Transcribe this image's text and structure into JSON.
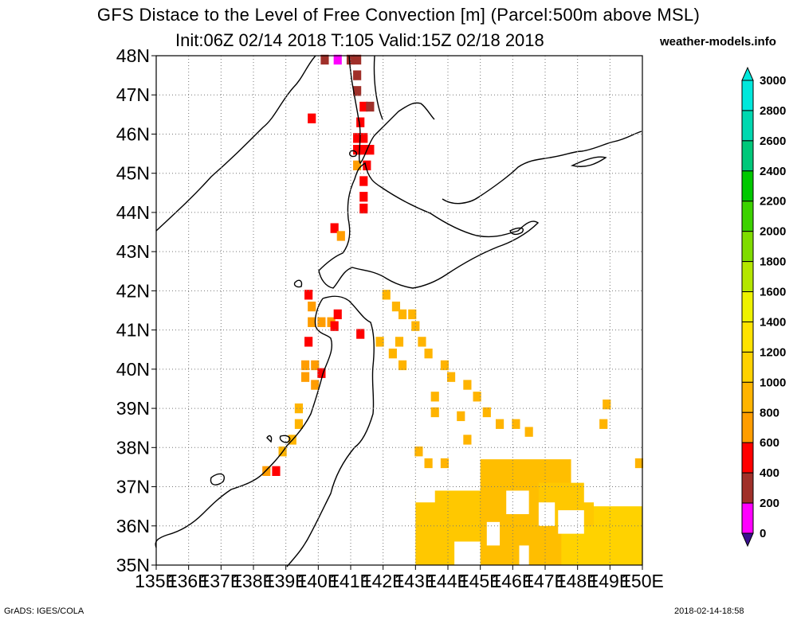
{
  "title": {
    "line1": "GFS Distace to the Level of Free Convection [m] (Parcel:500m above MSL)",
    "line2": "Init:06Z 02/14 2018 T:105 Valid:15Z 02/18 2018",
    "brand": "weather-models.info"
  },
  "footer": {
    "left": "GrADS: IGES/COLA",
    "right": "2018-02-14-18:58"
  },
  "map": {
    "lat_labels": [
      "35N",
      "36N",
      "37N",
      "38N",
      "39N",
      "40N",
      "41N",
      "42N",
      "43N",
      "44N",
      "45N",
      "46N",
      "47N",
      "48N"
    ],
    "lon_labels": [
      "135E",
      "136E",
      "137E",
      "138E",
      "139E",
      "140E",
      "141E",
      "142E",
      "143E",
      "144E",
      "145E",
      "146E",
      "147E",
      "148E",
      "149E",
      "150E"
    ],
    "extent": {
      "lon": [
        135,
        150
      ],
      "lat": [
        35,
        48
      ]
    }
  },
  "colorbar": {
    "labels": [
      "0",
      "200",
      "400",
      "600",
      "800",
      "1000",
      "1200",
      "1400",
      "1600",
      "1800",
      "2000",
      "2200",
      "2400",
      "2600",
      "2800",
      "3000"
    ],
    "colors": [
      "#3a0f8f",
      "#ff00ff",
      "#a0302a",
      "#ff0000",
      "#ff9d00",
      "#ffb400",
      "#ffd200",
      "#ffe300",
      "#eef200",
      "#b4e600",
      "#7fdc00",
      "#3cd200",
      "#00c800",
      "#00c87a",
      "#00d8b0",
      "#00e8dc"
    ],
    "low_color": "#3a0f8f",
    "high_color": "#00e8dc"
  },
  "field_cells": [
    {
      "lon": 141.0,
      "lat": 47.9,
      "c": "#a0302a"
    },
    {
      "lon": 141.2,
      "lat": 47.9,
      "c": "#a0302a"
    },
    {
      "lon": 140.2,
      "lat": 47.9,
      "c": "#a0302a"
    },
    {
      "lon": 140.6,
      "lat": 47.9,
      "c": "#ff00ff"
    },
    {
      "lon": 141.2,
      "lat": 47.5,
      "c": "#a0302a"
    },
    {
      "lon": 141.2,
      "lat": 47.1,
      "c": "#a0302a"
    },
    {
      "lon": 141.4,
      "lat": 46.7,
      "c": "#ff0000"
    },
    {
      "lon": 141.6,
      "lat": 46.7,
      "c": "#a0302a"
    },
    {
      "lon": 139.8,
      "lat": 46.4,
      "c": "#ff0000"
    },
    {
      "lon": 141.3,
      "lat": 46.3,
      "c": "#ff0000"
    },
    {
      "lon": 141.2,
      "lat": 45.9,
      "c": "#ff0000"
    },
    {
      "lon": 141.4,
      "lat": 45.9,
      "c": "#ff0000"
    },
    {
      "lon": 141.2,
      "lat": 45.6,
      "c": "#ff0000"
    },
    {
      "lon": 141.4,
      "lat": 45.6,
      "c": "#ff0000"
    },
    {
      "lon": 141.6,
      "lat": 45.6,
      "c": "#ff0000"
    },
    {
      "lon": 141.2,
      "lat": 45.2,
      "c": "#ff9d00"
    },
    {
      "lon": 141.5,
      "lat": 45.2,
      "c": "#ff0000"
    },
    {
      "lon": 141.4,
      "lat": 44.8,
      "c": "#ff0000"
    },
    {
      "lon": 141.4,
      "lat": 44.4,
      "c": "#ff0000"
    },
    {
      "lon": 141.4,
      "lat": 44.1,
      "c": "#ff0000"
    },
    {
      "lon": 140.5,
      "lat": 43.6,
      "c": "#ff0000"
    },
    {
      "lon": 140.7,
      "lat": 43.4,
      "c": "#ff9d00"
    },
    {
      "lon": 139.7,
      "lat": 41.9,
      "c": "#ff0000"
    },
    {
      "lon": 139.8,
      "lat": 41.6,
      "c": "#ff9d00"
    },
    {
      "lon": 139.8,
      "lat": 41.2,
      "c": "#ff9d00"
    },
    {
      "lon": 140.1,
      "lat": 41.2,
      "c": "#ff9d00"
    },
    {
      "lon": 140.4,
      "lat": 41.2,
      "c": "#ff9d00"
    },
    {
      "lon": 140.6,
      "lat": 41.4,
      "c": "#ff0000"
    },
    {
      "lon": 140.5,
      "lat": 41.1,
      "c": "#ff0000"
    },
    {
      "lon": 141.3,
      "lat": 40.9,
      "c": "#ff0000"
    },
    {
      "lon": 142.1,
      "lat": 41.9,
      "c": "#ffb400"
    },
    {
      "lon": 142.4,
      "lat": 41.6,
      "c": "#ffb400"
    },
    {
      "lon": 142.6,
      "lat": 41.4,
      "c": "#ffb400"
    },
    {
      "lon": 142.9,
      "lat": 41.4,
      "c": "#ffb400"
    },
    {
      "lon": 143.0,
      "lat": 41.1,
      "c": "#ffb400"
    },
    {
      "lon": 141.9,
      "lat": 40.7,
      "c": "#ffb400"
    },
    {
      "lon": 142.5,
      "lat": 40.7,
      "c": "#ffb400"
    },
    {
      "lon": 143.2,
      "lat": 40.7,
      "c": "#ffb400"
    },
    {
      "lon": 143.4,
      "lat": 40.4,
      "c": "#ffb400"
    },
    {
      "lon": 142.3,
      "lat": 40.4,
      "c": "#ffb400"
    },
    {
      "lon": 142.6,
      "lat": 40.1,
      "c": "#ffb400"
    },
    {
      "lon": 139.7,
      "lat": 40.7,
      "c": "#ff0000"
    },
    {
      "lon": 139.6,
      "lat": 40.1,
      "c": "#ff9d00"
    },
    {
      "lon": 139.9,
      "lat": 40.1,
      "c": "#ff9d00"
    },
    {
      "lon": 140.1,
      "lat": 39.9,
      "c": "#ff0000"
    },
    {
      "lon": 139.6,
      "lat": 39.8,
      "c": "#ff9d00"
    },
    {
      "lon": 139.9,
      "lat": 39.6,
      "c": "#ff9d00"
    },
    {
      "lon": 143.9,
      "lat": 40.1,
      "c": "#ffb400"
    },
    {
      "lon": 144.1,
      "lat": 39.8,
      "c": "#ffb400"
    },
    {
      "lon": 143.6,
      "lat": 39.3,
      "c": "#ffb400"
    },
    {
      "lon": 143.6,
      "lat": 38.9,
      "c": "#ffb400"
    },
    {
      "lon": 144.6,
      "lat": 39.6,
      "c": "#ffb400"
    },
    {
      "lon": 144.9,
      "lat": 39.3,
      "c": "#ffb400"
    },
    {
      "lon": 139.4,
      "lat": 39.0,
      "c": "#ffb400"
    },
    {
      "lon": 139.4,
      "lat": 38.6,
      "c": "#ffb400"
    },
    {
      "lon": 139.2,
      "lat": 38.2,
      "c": "#ffb400"
    },
    {
      "lon": 138.9,
      "lat": 37.9,
      "c": "#ffb400"
    },
    {
      "lon": 138.4,
      "lat": 37.4,
      "c": "#ff9d00"
    },
    {
      "lon": 138.7,
      "lat": 37.4,
      "c": "#ff0000"
    },
    {
      "lon": 145.2,
      "lat": 38.9,
      "c": "#ffb400"
    },
    {
      "lon": 145.6,
      "lat": 38.6,
      "c": "#ffb400"
    },
    {
      "lon": 146.1,
      "lat": 38.6,
      "c": "#ffb400"
    },
    {
      "lon": 146.5,
      "lat": 38.4,
      "c": "#ffb400"
    },
    {
      "lon": 144.4,
      "lat": 38.8,
      "c": "#ffb400"
    },
    {
      "lon": 144.6,
      "lat": 38.2,
      "c": "#ffb400"
    },
    {
      "lon": 148.9,
      "lat": 39.1,
      "c": "#ffb400"
    },
    {
      "lon": 148.8,
      "lat": 38.6,
      "c": "#ffb400"
    },
    {
      "lon": 143.1,
      "lat": 37.9,
      "c": "#ffb400"
    },
    {
      "lon": 143.4,
      "lat": 37.6,
      "c": "#ffb400"
    },
    {
      "lon": 143.9,
      "lat": 37.6,
      "c": "#ffb400"
    },
    {
      "lon": 149.9,
      "lat": 37.6,
      "c": "#ffb400"
    }
  ],
  "field_blocks": [
    {
      "lon": [
        143.0,
        145.2
      ],
      "lat": [
        35.0,
        36.9
      ],
      "c": "#ffc800"
    },
    {
      "lon": [
        145.0,
        147.8
      ],
      "lat": [
        35.0,
        37.7
      ],
      "c": "#ffbe00"
    },
    {
      "lon": [
        147.5,
        150.0
      ],
      "lat": [
        35.0,
        36.5
      ],
      "c": "#ffd200"
    },
    {
      "lon": [
        146.8,
        148.5
      ],
      "lat": [
        36.0,
        37.1
      ],
      "c": "#ffc800"
    }
  ],
  "field_holes": [
    {
      "lon": [
        144.2,
        145.0
      ],
      "lat": [
        35.0,
        35.6
      ]
    },
    {
      "lon": [
        145.2,
        145.6
      ],
      "lat": [
        35.5,
        36.1
      ]
    },
    {
      "lon": [
        145.8,
        146.5
      ],
      "lat": [
        36.3,
        36.9
      ]
    },
    {
      "lon": [
        146.2,
        146.5
      ],
      "lat": [
        35.0,
        35.5
      ]
    },
    {
      "lon": [
        146.8,
        147.3
      ],
      "lat": [
        36.0,
        36.6
      ]
    },
    {
      "lon": [
        147.4,
        148.2
      ],
      "lat": [
        35.8,
        36.4
      ]
    },
    {
      "lon": [
        148.2,
        149.0
      ],
      "lat": [
        36.6,
        37.2
      ]
    },
    {
      "lon": [
        143.0,
        143.6
      ],
      "lat": [
        36.6,
        37.0
      ]
    }
  ]
}
